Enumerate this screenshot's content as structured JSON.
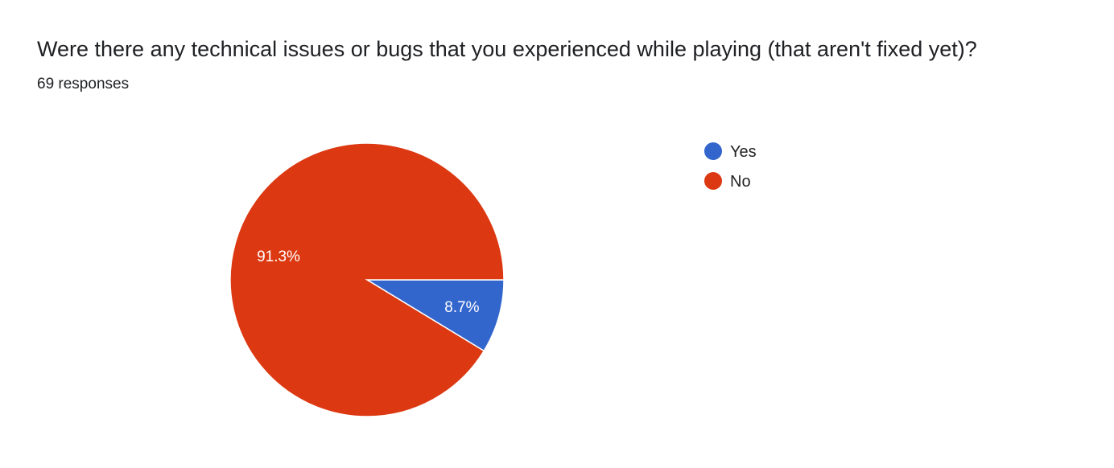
{
  "header": {
    "title": "Were there any technical issues or bugs that you experienced while playing (that aren't fixed yet)?",
    "subtitle": "69 responses"
  },
  "chart_data": {
    "type": "pie",
    "title": "Were there any technical issues or bugs that you experienced while playing (that aren't fixed yet)?",
    "categories": [
      "Yes",
      "No"
    ],
    "values": [
      8.7,
      91.3
    ],
    "labels": [
      "8.7%",
      "91.3%"
    ],
    "colors": [
      "#3366cc",
      "#dc3912"
    ],
    "legend": "right",
    "total_responses": 69
  }
}
